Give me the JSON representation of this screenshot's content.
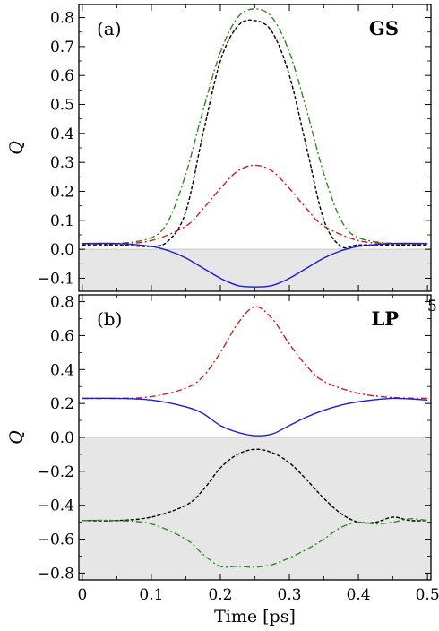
{
  "chart_data": [
    {
      "type": "line",
      "panel_label": "(a)",
      "tag": "GS",
      "ylabel": "Q",
      "xlabel": "",
      "xlim": [
        -0.005,
        0.505
      ],
      "ylim": [
        -0.145,
        0.845
      ],
      "yticks": [
        -0.1,
        0.0,
        0.1,
        0.2,
        0.3,
        0.4,
        0.5,
        0.6,
        0.7,
        0.8
      ],
      "ytick_labels": [
        "−0.1",
        "0.0",
        "0.1",
        "0.2",
        "0.3",
        "0.4",
        "0.5",
        "0.6",
        "0.7",
        "0.8"
      ],
      "xticks": [
        0,
        0.1,
        0.2,
        0.3,
        0.4,
        0.5
      ],
      "shaded_negative": true,
      "series": [
        {
          "color": "#2e8b1e",
          "dash": "7,3,2,3",
          "x": [
            0,
            0.05,
            0.1,
            0.125,
            0.15,
            0.175,
            0.2,
            0.225,
            0.25,
            0.275,
            0.3,
            0.325,
            0.35,
            0.375,
            0.4,
            0.45,
            0.5
          ],
          "y": [
            0.02,
            0.02,
            0.04,
            0.1,
            0.26,
            0.48,
            0.68,
            0.8,
            0.83,
            0.8,
            0.68,
            0.48,
            0.26,
            0.1,
            0.04,
            0.02,
            0.02
          ]
        },
        {
          "color": "#000000",
          "dash": "4,2",
          "x": [
            0,
            0.05,
            0.1,
            0.125,
            0.15,
            0.175,
            0.2,
            0.225,
            0.25,
            0.275,
            0.3,
            0.325,
            0.35,
            0.375,
            0.4,
            0.45,
            0.5
          ],
          "y": [
            0.015,
            0.015,
            0.01,
            0.03,
            0.13,
            0.4,
            0.65,
            0.77,
            0.79,
            0.75,
            0.6,
            0.35,
            0.1,
            0.01,
            0.015,
            0.015,
            0.015
          ]
        },
        {
          "color": "#cc1c1c",
          "dash": "7,3,2,3",
          "x": [
            0,
            0.05,
            0.1,
            0.15,
            0.175,
            0.2,
            0.225,
            0.25,
            0.275,
            0.3,
            0.325,
            0.35,
            0.4,
            0.45,
            0.5
          ],
          "y": [
            0.02,
            0.02,
            0.03,
            0.08,
            0.14,
            0.21,
            0.27,
            0.29,
            0.27,
            0.21,
            0.14,
            0.08,
            0.03,
            0.02,
            0.02
          ]
        },
        {
          "color": "#1c1ccc",
          "dash": "",
          "x": [
            0,
            0.05,
            0.1,
            0.125,
            0.15,
            0.175,
            0.2,
            0.225,
            0.25,
            0.275,
            0.3,
            0.325,
            0.35,
            0.375,
            0.4,
            0.45,
            0.5
          ],
          "y": [
            0.02,
            0.02,
            0.01,
            -0.005,
            -0.03,
            -0.065,
            -0.1,
            -0.125,
            -0.13,
            -0.125,
            -0.1,
            -0.065,
            -0.03,
            -0.005,
            0.01,
            0.02,
            0.02
          ]
        }
      ]
    },
    {
      "type": "line",
      "panel_label": "(b)",
      "tag": "LP",
      "ylabel": "Q",
      "xlabel": "Time [ps]",
      "xlim": [
        -0.005,
        0.505
      ],
      "ylim": [
        -0.84,
        0.84
      ],
      "yticks": [
        -0.8,
        -0.6,
        -0.4,
        -0.2,
        0.0,
        0.2,
        0.4,
        0.6,
        0.8
      ],
      "ytick_labels": [
        "−0.8",
        "−0.6",
        "−0.4",
        "−0.2",
        "0.0",
        "0.2",
        "0.4",
        "0.6",
        "0.8"
      ],
      "xticks": [
        0,
        0.1,
        0.2,
        0.3,
        0.4,
        0.5
      ],
      "xtick_labels": [
        "0",
        "0.1",
        "0.2",
        "0.3",
        "0.4",
        "0.5"
      ],
      "shaded_negative": true,
      "series": [
        {
          "color": "#cc1c1c",
          "dash": "7,3,2,3",
          "x": [
            0,
            0.05,
            0.1,
            0.15,
            0.175,
            0.2,
            0.225,
            0.25,
            0.275,
            0.3,
            0.325,
            0.35,
            0.4,
            0.45,
            0.5
          ],
          "y": [
            0.23,
            0.23,
            0.24,
            0.29,
            0.36,
            0.5,
            0.67,
            0.77,
            0.7,
            0.55,
            0.42,
            0.33,
            0.26,
            0.235,
            0.23
          ]
        },
        {
          "color": "#1c1ccc",
          "dash": "",
          "x": [
            0,
            0.05,
            0.1,
            0.15,
            0.175,
            0.2,
            0.225,
            0.25,
            0.275,
            0.3,
            0.325,
            0.35,
            0.375,
            0.4,
            0.45,
            0.5
          ],
          "y": [
            0.23,
            0.23,
            0.22,
            0.18,
            0.14,
            0.07,
            0.03,
            0.01,
            0.02,
            0.07,
            0.12,
            0.16,
            0.19,
            0.21,
            0.23,
            0.22
          ]
        },
        {
          "color": "#000000",
          "dash": "4,2",
          "x": [
            0,
            0.05,
            0.1,
            0.15,
            0.175,
            0.2,
            0.225,
            0.25,
            0.275,
            0.3,
            0.325,
            0.35,
            0.375,
            0.4,
            0.425,
            0.45,
            0.475,
            0.5
          ],
          "y": [
            -0.49,
            -0.49,
            -0.47,
            -0.4,
            -0.31,
            -0.18,
            -0.1,
            -0.07,
            -0.09,
            -0.15,
            -0.25,
            -0.36,
            -0.45,
            -0.5,
            -0.5,
            -0.47,
            -0.49,
            -0.49
          ]
        },
        {
          "color": "#2e8b1e",
          "dash": "7,3,2,3",
          "x": [
            0,
            0.05,
            0.1,
            0.15,
            0.175,
            0.2,
            0.225,
            0.25,
            0.275,
            0.3,
            0.325,
            0.35,
            0.375,
            0.4,
            0.425,
            0.45,
            0.475,
            0.5
          ],
          "y": [
            -0.49,
            -0.49,
            -0.51,
            -0.6,
            -0.69,
            -0.76,
            -0.76,
            -0.765,
            -0.75,
            -0.71,
            -0.66,
            -0.6,
            -0.53,
            -0.5,
            -0.51,
            -0.5,
            -0.48,
            -0.49
          ]
        }
      ]
    }
  ],
  "stray_glyph": "5"
}
